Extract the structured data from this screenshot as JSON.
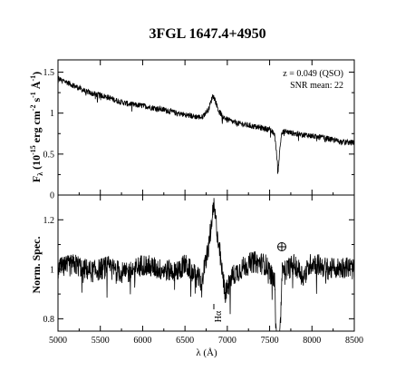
{
  "chart_data": [
    {
      "type": "line",
      "title": "3FGL 1647.4+4950",
      "ylabel": "Fλ (10⁻¹⁵ erg cm⁻² s⁻¹ Å⁻¹)",
      "ylabel_main": "F",
      "ylabel_sub": "λ",
      "ylabel_rest": "(10",
      "ylabel_exp": "-15",
      "ylabel_units": "erg cm",
      "ylabel_units_exp1": "-2",
      "ylabel_units_s": "s",
      "ylabel_units_exp2": "-1",
      "ylabel_units_A": "Å",
      "ylabel_units_exp3": "-1",
      "ylabel_close": ")",
      "xlim": [
        5000,
        8500
      ],
      "ylim": [
        0,
        1.65
      ],
      "yticks": [
        0,
        0.5,
        1,
        1.5
      ],
      "ytick_labels": [
        "0",
        "0.5",
        "1",
        "1.5"
      ],
      "annotations": [
        "z = 0.049 (QSO)",
        "SNR mean: 22"
      ],
      "series": [
        {
          "x": [
            5000,
            5100,
            5200,
            5300,
            5400,
            5500,
            5600,
            5700,
            5800,
            5900,
            6000,
            6100,
            6200,
            6300,
            6400,
            6500,
            6600,
            6700,
            6780,
            6830,
            6860,
            6900,
            6950,
            7000,
            7100,
            7200,
            7300,
            7400,
            7500,
            7560,
            7600,
            7620,
            7640,
            7680,
            7750,
            7850,
            7950,
            8050,
            8150,
            8250,
            8350,
            8450,
            8500
          ],
          "y": [
            1.42,
            1.38,
            1.33,
            1.28,
            1.24,
            1.22,
            1.19,
            1.15,
            1.12,
            1.1,
            1.09,
            1.07,
            1.05,
            1.03,
            1.0,
            0.98,
            0.96,
            0.95,
            1.05,
            1.22,
            1.15,
            1.02,
            0.96,
            0.92,
            0.88,
            0.86,
            0.84,
            0.82,
            0.8,
            0.74,
            0.3,
            0.55,
            0.75,
            0.78,
            0.76,
            0.74,
            0.73,
            0.71,
            0.7,
            0.67,
            0.65,
            0.64,
            0.64
          ]
        }
      ]
    },
    {
      "type": "line",
      "ylabel": "Norm. Spec.",
      "xlabel": "λ (Å)",
      "xlim": [
        5000,
        8500
      ],
      "ylim": [
        0.75,
        1.3
      ],
      "xticks": [
        5000,
        5500,
        6000,
        6500,
        7000,
        7500,
        8000,
        8500
      ],
      "xtick_labels": [
        "5000",
        "5500",
        "6000",
        "6500",
        "7000",
        "7500",
        "8000",
        "8500"
      ],
      "yticks": [
        0.8,
        1,
        1.2
      ],
      "ytick_labels": [
        "0.8",
        "1",
        "1.2"
      ],
      "line_labels": [
        "Hα"
      ],
      "symbols": [
        "earth-symbol"
      ],
      "series": [
        {
          "x": [
            5000,
            5200,
            5400,
            5600,
            5800,
            6000,
            6200,
            6400,
            6500,
            6600,
            6700,
            6750,
            6800,
            6840,
            6870,
            6900,
            6940,
            6980,
            7050,
            7150,
            7300,
            7450,
            7560,
            7600,
            7620,
            7650,
            7700,
            7800,
            7900,
            8000,
            8200,
            8400,
            8500
          ],
          "y": [
            1.0,
            1.02,
            0.99,
            1.01,
            0.98,
            1.02,
            1.0,
            0.99,
            1.02,
            0.98,
            0.95,
            1.04,
            1.15,
            1.25,
            1.18,
            1.1,
            0.98,
            0.9,
            0.97,
            1.0,
            1.03,
            1.02,
            0.95,
            0.42,
            0.7,
            1.02,
            1.0,
            1.02,
            0.97,
            1.03,
            1.0,
            1.01,
            1.0
          ]
        }
      ]
    }
  ]
}
